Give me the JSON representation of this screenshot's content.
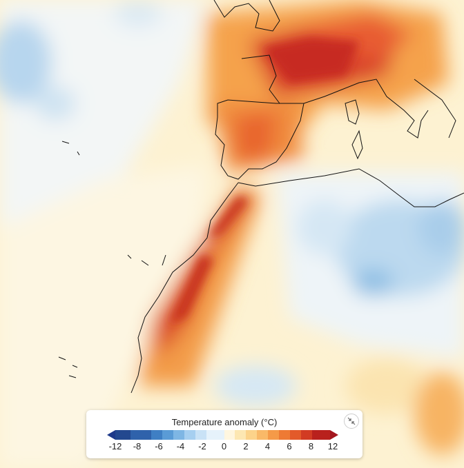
{
  "legend": {
    "title": "Temperature anomaly (°C)",
    "ticks": [
      -12,
      -8,
      -6,
      -4,
      -2,
      0,
      2,
      4,
      6,
      8,
      12
    ]
  }
}
